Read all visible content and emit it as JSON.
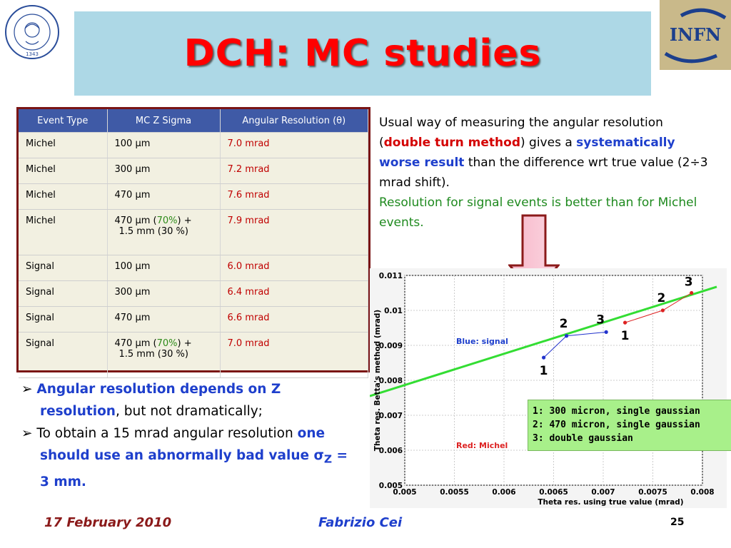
{
  "slide": {
    "title": "DCH: MC studies",
    "logo_seal_text": "IN SUPREMÆ DIGNITATIS 1343",
    "logo_infn_text": "INFN"
  },
  "table": {
    "headers": [
      "Event Type",
      "MC Z Sigma",
      "Angular Resolution (θ)"
    ],
    "rows": [
      {
        "type": "Michel",
        "sigma_a": "100 μm",
        "sigma_b": "",
        "sigma_c": "",
        "sigma_d": "",
        "res": "7.0 mrad"
      },
      {
        "type": "Michel",
        "sigma_a": "300 μm",
        "sigma_b": "",
        "sigma_c": "",
        "sigma_d": "",
        "res": "7.2 mrad"
      },
      {
        "type": "Michel",
        "sigma_a": "470 μm",
        "sigma_b": "",
        "sigma_c": "",
        "sigma_d": "",
        "res": "7.6 mrad"
      },
      {
        "type": "Michel",
        "sigma_a": "470 μm (",
        "sigma_b": "70%",
        "sigma_c": ")  +",
        "sigma_d": "1.5 mm (30 %)",
        "res": "7.9 mrad"
      },
      {
        "type": "Signal",
        "sigma_a": "100 μm",
        "sigma_b": "",
        "sigma_c": "",
        "sigma_d": "",
        "res": "6.0 mrad"
      },
      {
        "type": "Signal",
        "sigma_a": "300 μm",
        "sigma_b": "",
        "sigma_c": "",
        "sigma_d": "",
        "res": "6.4 mrad"
      },
      {
        "type": "Signal",
        "sigma_a": "470 μm",
        "sigma_b": "",
        "sigma_c": "",
        "sigma_d": "",
        "res": "6.6 mrad"
      },
      {
        "type": "Signal",
        "sigma_a": "470 μm (",
        "sigma_b": "70%",
        "sigma_c": ")  +",
        "sigma_d": "1.5 mm (30 %)",
        "res": "7.0 mrad"
      }
    ]
  },
  "right_text": {
    "p1": "Usual way of measuring the angular resolution (",
    "p1_red": "double turn method",
    "p1_b": ") gives a ",
    "p1_blue": "systematically worse result",
    "p1_c": " than the difference wrt true value (2÷3 mrad shift).",
    "p2_green": "Resolution for signal events is better than for Michel events."
  },
  "bullets": [
    {
      "marker": "➢",
      "blue": "Angular resolution depends on Z resolution",
      "rest": ", but not dramatically;"
    },
    {
      "marker": "➢",
      "lead": "To obtain a 15 mrad angular resolution ",
      "blue": "one should use an abnormally bad value σ",
      "sub": "Z",
      "tail": " = 3 mm."
    }
  ],
  "legend_box": {
    "line1": "1: 300 micron, single gaussian",
    "line2": "2: 470 micron, single gaussian",
    "line3": "3: double gaussian"
  },
  "chart_data": {
    "type": "scatter",
    "xlabel": "Theta res. using true value (mrad)",
    "ylabel": "Theta res. Betta's method (mrad)",
    "xlim": [
      0.005,
      0.008
    ],
    "ylim": [
      0.005,
      0.011
    ],
    "xticks": [
      "0.005",
      "0.0055",
      "0.006",
      "0.0065",
      "0.007",
      "0.0075",
      "0.008"
    ],
    "yticks": [
      "0.005",
      "0.006",
      "0.007",
      "0.008",
      "0.009",
      "0.01",
      "0.011"
    ],
    "series": [
      {
        "name": "Blue: signal",
        "color": "#2233cc",
        "points": [
          [
            0.0064,
            0.00865
          ],
          [
            0.00663,
            0.00927
          ],
          [
            0.00703,
            0.00938
          ]
        ],
        "labels": [
          "1",
          "2",
          "3"
        ]
      },
      {
        "name": "Red: Michel",
        "color": "#dd2222",
        "points": [
          [
            0.00722,
            0.00965
          ],
          [
            0.0076,
            0.01
          ],
          [
            0.00789,
            0.0105
          ]
        ],
        "labels": [
          "1",
          "2",
          "3"
        ]
      },
      {
        "name": "fit",
        "color": "#33dd33",
        "line": [
          [
            0.005,
            0.00755
          ],
          [
            0.008,
            0.01043
          ]
        ]
      }
    ],
    "annotations": [
      "Blue: signal",
      "Red: Michel"
    ],
    "grid": true
  },
  "footer": {
    "date": "17 February 2010",
    "author": "Fabrizio Cei",
    "page": "25"
  }
}
